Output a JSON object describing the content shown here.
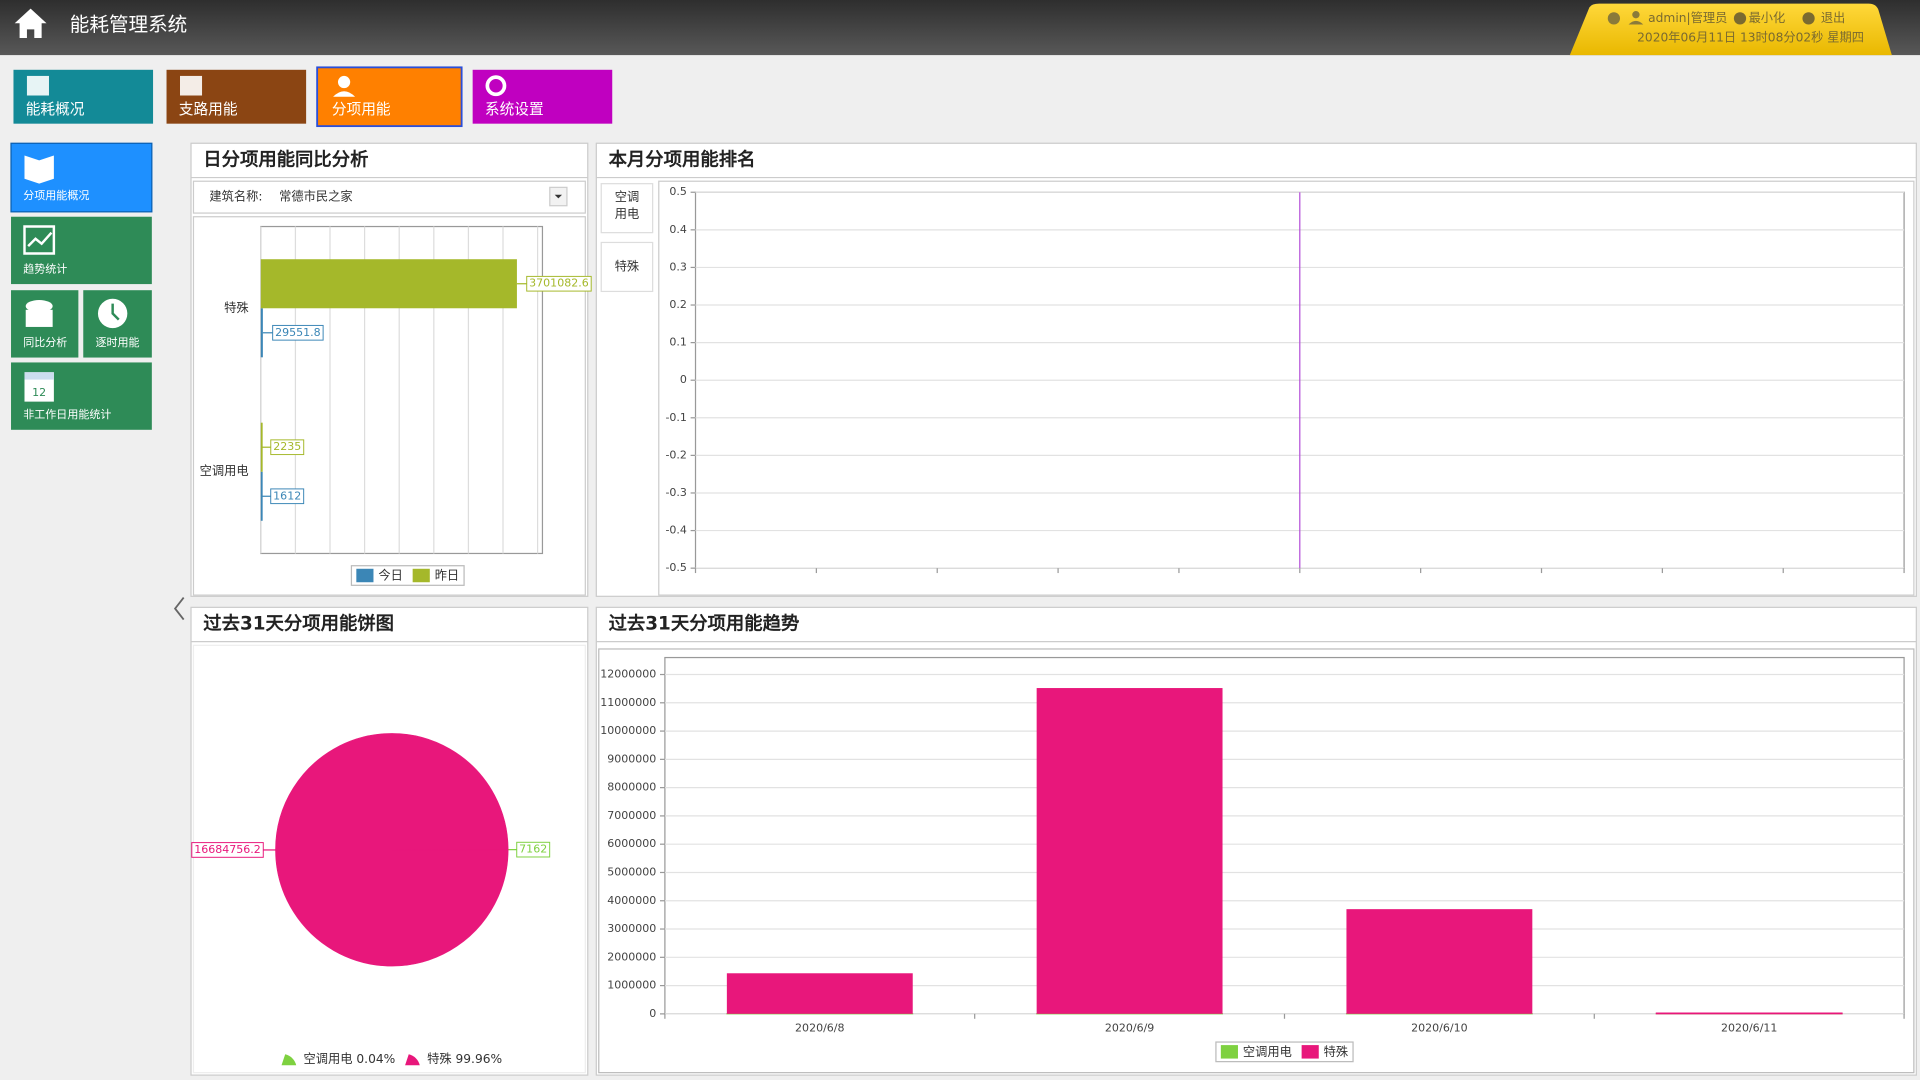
{
  "header": {
    "title": "能耗管理系统",
    "user": "admin|管理员",
    "minimize": "最小化",
    "logout": "退出",
    "datetime": "2020年06月11日 13时08分02秒 星期四"
  },
  "nav": [
    "能耗概况",
    "支路用能",
    "分项用能",
    "系统设置"
  ],
  "sidebar": [
    "分项用能概况",
    "趋势统计",
    "同比分析",
    "逐时用能",
    "非工作日用能统计"
  ],
  "calendar_icon": "12",
  "chart_data": [
    {
      "type": "bar",
      "horizontal": true,
      "title": "日分项用能同比分析",
      "filter_label": "建筑名称:",
      "filter_value": "常德市民之家",
      "categories": [
        "特殊",
        "空调用电"
      ],
      "series": [
        {
          "name": "今日",
          "color": "#3b86b6",
          "values": [
            29551.8,
            1612
          ]
        },
        {
          "name": "昨日",
          "color": "#a5b82a",
          "values": [
            3701082.6,
            2235
          ]
        }
      ],
      "xlim": [
        0,
        4070000
      ],
      "xticks": [
        0,
        500000,
        1000000,
        1500000,
        2000000,
        2500000,
        3000000,
        3500000,
        4000000
      ],
      "grid": true,
      "legend": "bottom"
    },
    {
      "type": "bar",
      "title": "本月分项用能排名",
      "tabs": [
        "空调用电",
        "特殊"
      ],
      "categories": [
        null,
        null,
        null,
        null,
        null,
        null,
        null,
        null,
        null,
        null
      ],
      "series": [
        {
          "color": "#3b86b6",
          "values": [
            0,
            0,
            0,
            0,
            0,
            0,
            0,
            0,
            0,
            0
          ]
        }
      ],
      "ylim": [
        -0.5,
        0.5
      ],
      "yticks": [
        0.5,
        0.4,
        0.3,
        0.2,
        0.1,
        0,
        -0.1,
        -0.2,
        -0.3,
        -0.4,
        -0.5
      ],
      "grid": true
    },
    {
      "type": "pie",
      "title": "过去31天分项用能饼图",
      "categories": [
        "空调用电",
        "特殊"
      ],
      "values": [
        7162,
        16684756.2
      ],
      "colors": [
        "#7ed140",
        "#e8177b"
      ],
      "percent_labels": [
        "0.04%",
        "99.96%"
      ],
      "legend": "bottom"
    },
    {
      "type": "bar",
      "stacked": true,
      "title": "过去31天分项用能趋势",
      "categories": [
        "2020/6/8",
        "2020/6/9",
        "2020/6/10",
        "2020/6/11"
      ],
      "series": [
        {
          "name": "空调用电",
          "color": "#7ed140",
          "values": [
            1658,
            1657,
            2235,
            1612
          ]
        },
        {
          "name": "特殊",
          "color": "#e8177b",
          "values": [
            1434121.8,
            11520000,
            3701082.6,
            29551.8
          ]
        }
      ],
      "ylim": [
        0,
        12600000
      ],
      "yticks": [
        0,
        1000000,
        2000000,
        3000000,
        4000000,
        5000000,
        6000000,
        7000000,
        8000000,
        9000000,
        10000000,
        11000000,
        12000000
      ],
      "grid": true,
      "legend": "bottom"
    }
  ]
}
